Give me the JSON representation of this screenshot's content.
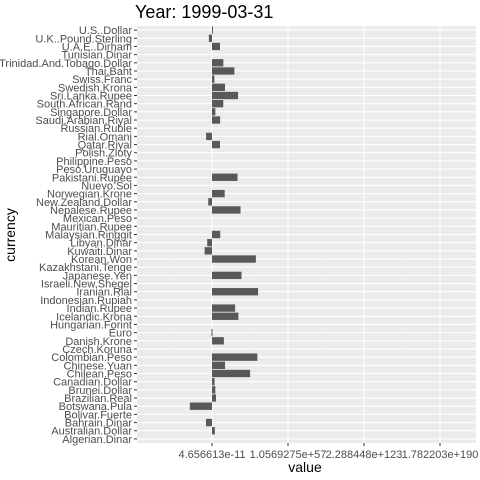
{
  "chart_data": {
    "type": "bar",
    "orientation": "horizontal",
    "title": "Year: 1999-03-31",
    "xlabel": "value",
    "ylabel": "currency",
    "x_scale": "log",
    "grid": true,
    "x_tick_labels": [
      "4.656613e-11",
      "1.0569275e+57",
      "2.288448e+123",
      "1.782203e+190"
    ],
    "categories": [
      "U.S..Dollar",
      "U.K..Pound.Sterling",
      "U.A.E..Dirham",
      "Tunisian.Dinar",
      "Trinidad.And.Tobago.Dollar",
      "Thai.Baht",
      "Swiss.Franc",
      "Swedish.Krona",
      "Sri.Lanka.Rupee",
      "South.African.Rand",
      "Singapore.Dollar",
      "Saudi.Arabian.Riyal",
      "Russian.Ruble",
      "Rial.Omani",
      "Qatar.Riyal",
      "Polish.Zloty",
      "Philippine.Peso",
      "Peso.Uruguayo",
      "Pakistani.Rupee",
      "Nuevo.Sol",
      "Norwegian.Krone",
      "New.Zealand.Dollar",
      "Nepalese.Rupee",
      "Mexican.Peso",
      "Mauritian.Rupee",
      "Malaysian.Ringgit",
      "Libyan.Dinar",
      "Kuwaiti.Dinar",
      "Korean.Won",
      "Kazakhstani.Tenge",
      "Japanese.Yen",
      "Israeli.New.Shegel",
      "Iranian.Rial",
      "Indonesian.Rupiah",
      "Indian.Rupee",
      "Icelandic.Krona",
      "Hungarian.Forint",
      "Euro",
      "Danish.Krone",
      "Czech.Koruna",
      "Colombian.Peso",
      "Chinese.Yuan",
      "Chilean.Peso",
      "Canadian.Dollar",
      "Brunei.Dollar",
      "Brazilian.Real",
      "Botswana.Pula",
      "Bolivar.Fuerte",
      "Bahrain.Dinar",
      "Australian.Dollar",
      "Algerian.Dinar"
    ],
    "values": [
      "1",
      "0.604",
      "3.6725",
      null,
      "6.29",
      "37.6",
      "1.47",
      "8.22",
      "69.4",
      "6.23",
      "1.72",
      "3.75",
      null,
      "0.385",
      "3.64",
      null,
      null,
      null,
      "62.7",
      null,
      "7.84",
      "0.545",
      "102",
      null,
      null,
      "3.8",
      "0.46",
      "0.302",
      "1230",
      null,
      "120",
      null,
      "1750",
      null,
      "42.5",
      "72.4",
      null,
      "0.92",
      "6.86",
      null,
      "1560",
      "8.28",
      "484",
      "1.51",
      "1.72",
      "1.92",
      "0.0275",
      null,
      "0.376",
      "1.59",
      null
    ]
  }
}
